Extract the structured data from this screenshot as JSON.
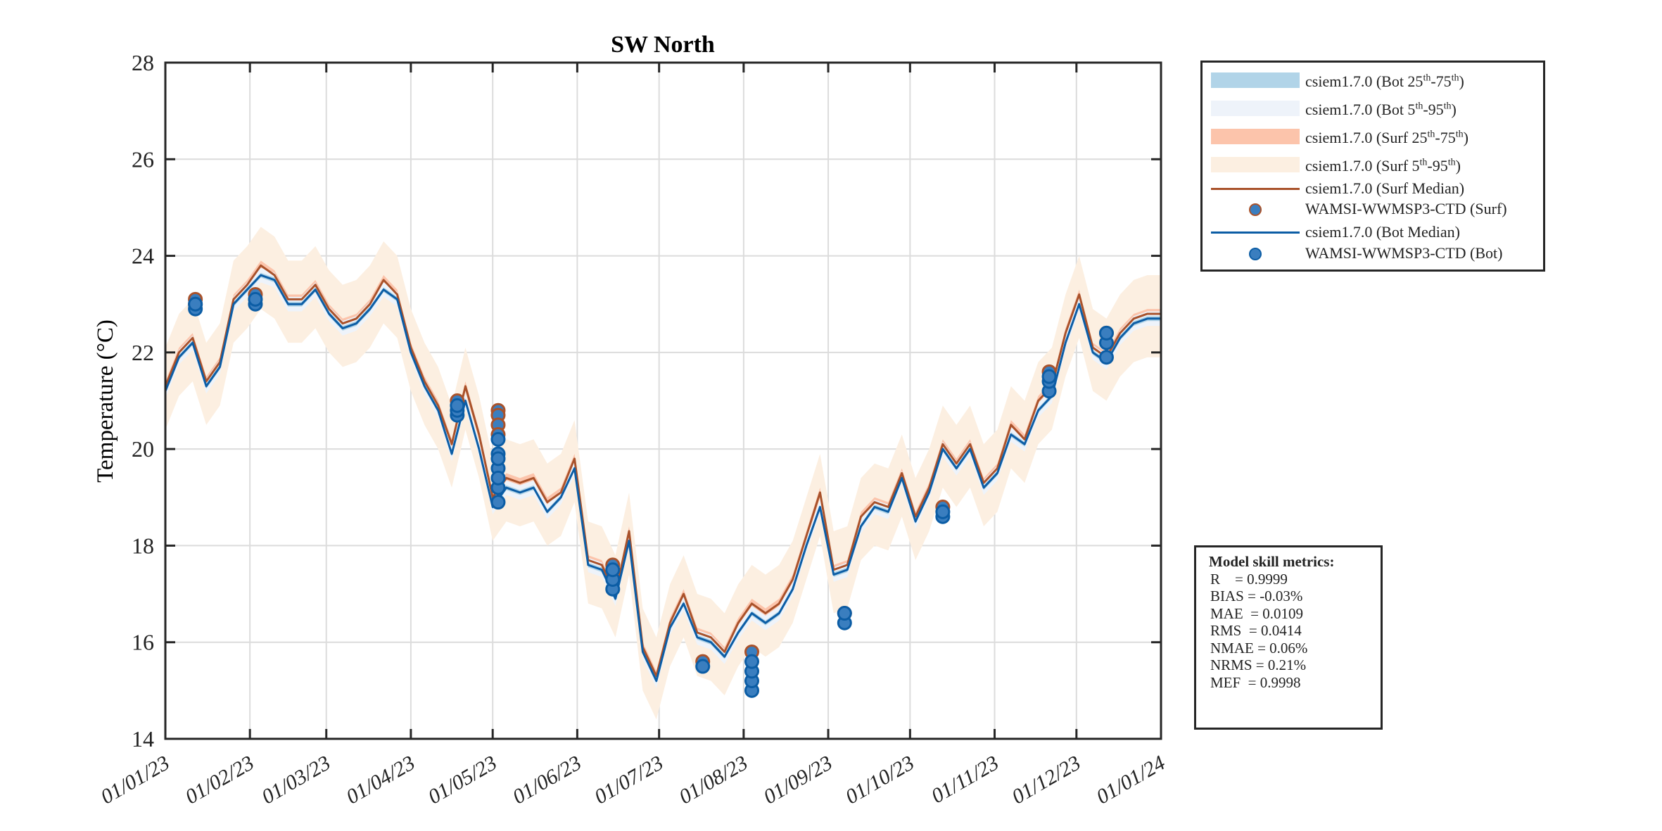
{
  "chart_data": {
    "type": "line",
    "title": "SW North",
    "ylabel": "Temperature (°C)",
    "xlabel": "",
    "ylim": [
      14,
      28
    ],
    "yticks": [
      14,
      16,
      18,
      20,
      22,
      24,
      26,
      28
    ],
    "xlim": [
      "2023-01-01",
      "2024-01-01"
    ],
    "xticks": [
      "2023-01-01",
      "2023-02-01",
      "2023-03-01",
      "2023-04-01",
      "2023-05-01",
      "2023-06-01",
      "2023-07-01",
      "2023-08-01",
      "2023-09-01",
      "2023-10-01",
      "2023-11-01",
      "2023-12-01",
      "2024-01-01"
    ],
    "xtick_labels": [
      "01/01/23",
      "01/02/23",
      "01/03/23",
      "01/04/23",
      "01/05/23",
      "01/06/23",
      "01/07/23",
      "01/08/23",
      "01/09/23",
      "01/10/23",
      "01/11/23",
      "01/12/23",
      "01/01/24"
    ],
    "grid": true,
    "legend_position": "outside-top-right",
    "x": [
      "2023-01-01",
      "2023-01-06",
      "2023-01-11",
      "2023-01-16",
      "2023-01-21",
      "2023-01-26",
      "2023-01-31",
      "2023-02-05",
      "2023-02-10",
      "2023-02-15",
      "2023-02-20",
      "2023-02-25",
      "2023-03-02",
      "2023-03-07",
      "2023-03-12",
      "2023-03-17",
      "2023-03-22",
      "2023-03-27",
      "2023-04-01",
      "2023-04-06",
      "2023-04-11",
      "2023-04-16",
      "2023-04-21",
      "2023-04-26",
      "2023-05-01",
      "2023-05-06",
      "2023-05-11",
      "2023-05-16",
      "2023-05-21",
      "2023-05-26",
      "2023-05-31",
      "2023-06-05",
      "2023-06-10",
      "2023-06-15",
      "2023-06-20",
      "2023-06-25",
      "2023-06-30",
      "2023-07-05",
      "2023-07-10",
      "2023-07-15",
      "2023-07-20",
      "2023-07-25",
      "2023-07-30",
      "2023-08-04",
      "2023-08-09",
      "2023-08-14",
      "2023-08-19",
      "2023-08-24",
      "2023-08-29",
      "2023-09-03",
      "2023-09-08",
      "2023-09-13",
      "2023-09-18",
      "2023-09-23",
      "2023-09-28",
      "2023-10-03",
      "2023-10-08",
      "2023-10-13",
      "2023-10-18",
      "2023-10-23",
      "2023-10-28",
      "2023-11-02",
      "2023-11-07",
      "2023-11-12",
      "2023-11-17",
      "2023-11-22",
      "2023-11-27",
      "2023-12-02",
      "2023-12-07",
      "2023-12-12",
      "2023-12-17",
      "2023-12-22",
      "2023-12-27",
      "2024-01-01"
    ],
    "series": [
      {
        "name": "csiem1.7.0 (Surf Median)",
        "color": "#a9522b",
        "values": [
          21.3,
          22.0,
          22.3,
          21.4,
          21.8,
          23.1,
          23.4,
          23.8,
          23.6,
          23.1,
          23.1,
          23.4,
          22.9,
          22.6,
          22.7,
          23.0,
          23.5,
          23.2,
          22.1,
          21.4,
          20.9,
          20.1,
          21.3,
          20.3,
          19.0,
          19.4,
          19.3,
          19.4,
          18.9,
          19.1,
          19.8,
          17.7,
          17.6,
          17.0,
          18.3,
          15.9,
          15.3,
          16.4,
          17.0,
          16.2,
          16.1,
          15.8,
          16.4,
          16.8,
          16.6,
          16.8,
          17.3,
          18.2,
          19.1,
          17.5,
          17.6,
          18.6,
          18.9,
          18.8,
          19.5,
          18.6,
          19.2,
          20.1,
          19.7,
          20.1,
          19.3,
          19.6,
          20.5,
          20.2,
          21.0,
          21.3,
          22.4,
          23.2,
          22.1,
          21.9,
          22.4,
          22.7,
          22.8,
          22.8
        ]
      },
      {
        "name": "csiem1.7.0 (Bot Median)",
        "color": "#0c5da5",
        "values": [
          21.2,
          21.9,
          22.2,
          21.3,
          21.7,
          23.0,
          23.3,
          23.6,
          23.5,
          23.0,
          23.0,
          23.3,
          22.8,
          22.5,
          22.6,
          22.9,
          23.3,
          23.1,
          22.0,
          21.3,
          20.8,
          19.9,
          21.0,
          20.0,
          18.8,
          19.2,
          19.1,
          19.2,
          18.7,
          19.0,
          19.6,
          17.6,
          17.5,
          16.9,
          18.1,
          15.8,
          15.2,
          16.3,
          16.8,
          16.1,
          16.0,
          15.7,
          16.2,
          16.6,
          16.4,
          16.6,
          17.1,
          18.0,
          18.8,
          17.4,
          17.5,
          18.4,
          18.8,
          18.7,
          19.4,
          18.5,
          19.1,
          20.0,
          19.6,
          20.0,
          19.2,
          19.5,
          20.3,
          20.1,
          20.8,
          21.1,
          22.2,
          23.0,
          22.0,
          21.8,
          22.3,
          22.6,
          22.7,
          22.7
        ]
      }
    ],
    "bands": [
      {
        "name": "csiem1.7.0 (Surf 5th-95th)",
        "color": "#fcefe1",
        "about": "csiem1.7.0 (Surf Median)",
        "spread": [
          -0.9,
          0.8
        ]
      },
      {
        "name": "csiem1.7.0 (Surf 25th-75th)",
        "color": "#fcc4ab",
        "about": "csiem1.7.0 (Surf Median)",
        "spread": [
          -0.1,
          0.1
        ]
      },
      {
        "name": "csiem1.7.0 (Bot 5th-95th)",
        "color": "#eef3fa",
        "about": "csiem1.7.0 (Bot Median)",
        "spread": [
          -0.15,
          0.15
        ]
      },
      {
        "name": "csiem1.7.0 (Bot 25th-75th)",
        "color": "#b1d4e8",
        "about": "csiem1.7.0 (Bot Median)",
        "spread": [
          -0.05,
          0.05
        ]
      }
    ],
    "observations": [
      {
        "name": "WAMSI-WWMSP3-CTD (Surf)",
        "fill": "#3a7ebf",
        "edge": "#a9522b",
        "points": [
          {
            "date": "2023-01-12",
            "values": [
              23.1,
              23.0
            ]
          },
          {
            "date": "2023-02-03",
            "values": [
              23.2
            ]
          },
          {
            "date": "2023-04-18",
            "values": [
              21.0
            ]
          },
          {
            "date": "2023-05-03",
            "values": [
              20.8,
              20.7,
              20.5,
              20.3
            ]
          },
          {
            "date": "2023-06-14",
            "values": [
              17.6
            ]
          },
          {
            "date": "2023-07-17",
            "values": [
              15.6
            ]
          },
          {
            "date": "2023-08-04",
            "values": [
              15.8
            ]
          },
          {
            "date": "2023-09-07",
            "values": [
              16.6
            ]
          },
          {
            "date": "2023-10-13",
            "values": [
              18.8
            ]
          },
          {
            "date": "2023-11-21",
            "values": [
              21.6
            ]
          },
          {
            "date": "2023-12-12",
            "values": [
              22.4
            ]
          }
        ]
      },
      {
        "name": "WAMSI-WWMSP3-CTD (Bot)",
        "fill": "#3a7ebf",
        "edge": "#0c5da5",
        "points": [
          {
            "date": "2023-01-12",
            "values": [
              22.9,
              23.0
            ]
          },
          {
            "date": "2023-02-03",
            "values": [
              23.0,
              23.1
            ]
          },
          {
            "date": "2023-04-18",
            "values": [
              20.7,
              20.8,
              20.9
            ]
          },
          {
            "date": "2023-05-03",
            "values": [
              20.2,
              19.9,
              19.6,
              19.2,
              18.9,
              19.4,
              19.8
            ]
          },
          {
            "date": "2023-06-14",
            "values": [
              17.1,
              17.3,
              17.5
            ]
          },
          {
            "date": "2023-07-17",
            "values": [
              15.5
            ]
          },
          {
            "date": "2023-08-04",
            "values": [
              15.0,
              15.2,
              15.4,
              15.6
            ]
          },
          {
            "date": "2023-09-07",
            "values": [
              16.4,
              16.6
            ]
          },
          {
            "date": "2023-10-13",
            "values": [
              18.6,
              18.7
            ]
          },
          {
            "date": "2023-11-21",
            "values": [
              21.2,
              21.4,
              21.5
            ]
          },
          {
            "date": "2023-12-12",
            "values": [
              21.9,
              22.2,
              22.4
            ]
          }
        ]
      }
    ]
  },
  "legend": {
    "items": [
      {
        "label": "csiem1.7.0 (Bot 25th-75th)",
        "kind": "patch",
        "color": "#b1d4e8"
      },
      {
        "label": "csiem1.7.0 (Bot 5th-95th)",
        "kind": "patch",
        "color": "#eef3fa"
      },
      {
        "label": "csiem1.7.0 (Surf 25th-75th)",
        "kind": "patch",
        "color": "#fcc4ab"
      },
      {
        "label": "csiem1.7.0 (Surf 5th-95th)",
        "kind": "patch",
        "color": "#fcefe1"
      },
      {
        "label": "csiem1.7.0 (Surf Median)",
        "kind": "line",
        "color": "#a9522b"
      },
      {
        "label": "WAMSI-WWMSP3-CTD (Surf)",
        "kind": "marker",
        "color": "#3a7ebf",
        "edge": "#a9522b"
      },
      {
        "label": "csiem1.7.0 (Bot Median)",
        "kind": "line",
        "color": "#0c5da5"
      },
      {
        "label": "WAMSI-WWMSP3-CTD (Bot)",
        "kind": "marker",
        "color": "#3a7ebf",
        "edge": "#0c5da5"
      }
    ]
  },
  "metrics": {
    "title": "Model skill metrics:",
    "rows": [
      "R    = 0.9999",
      "BIAS = -0.03%",
      "MAE  = 0.0109",
      "RMS  = 0.0414",
      "NMAE = 0.06%",
      "NRMS = 0.21%",
      "MEF  = 0.9998"
    ]
  }
}
